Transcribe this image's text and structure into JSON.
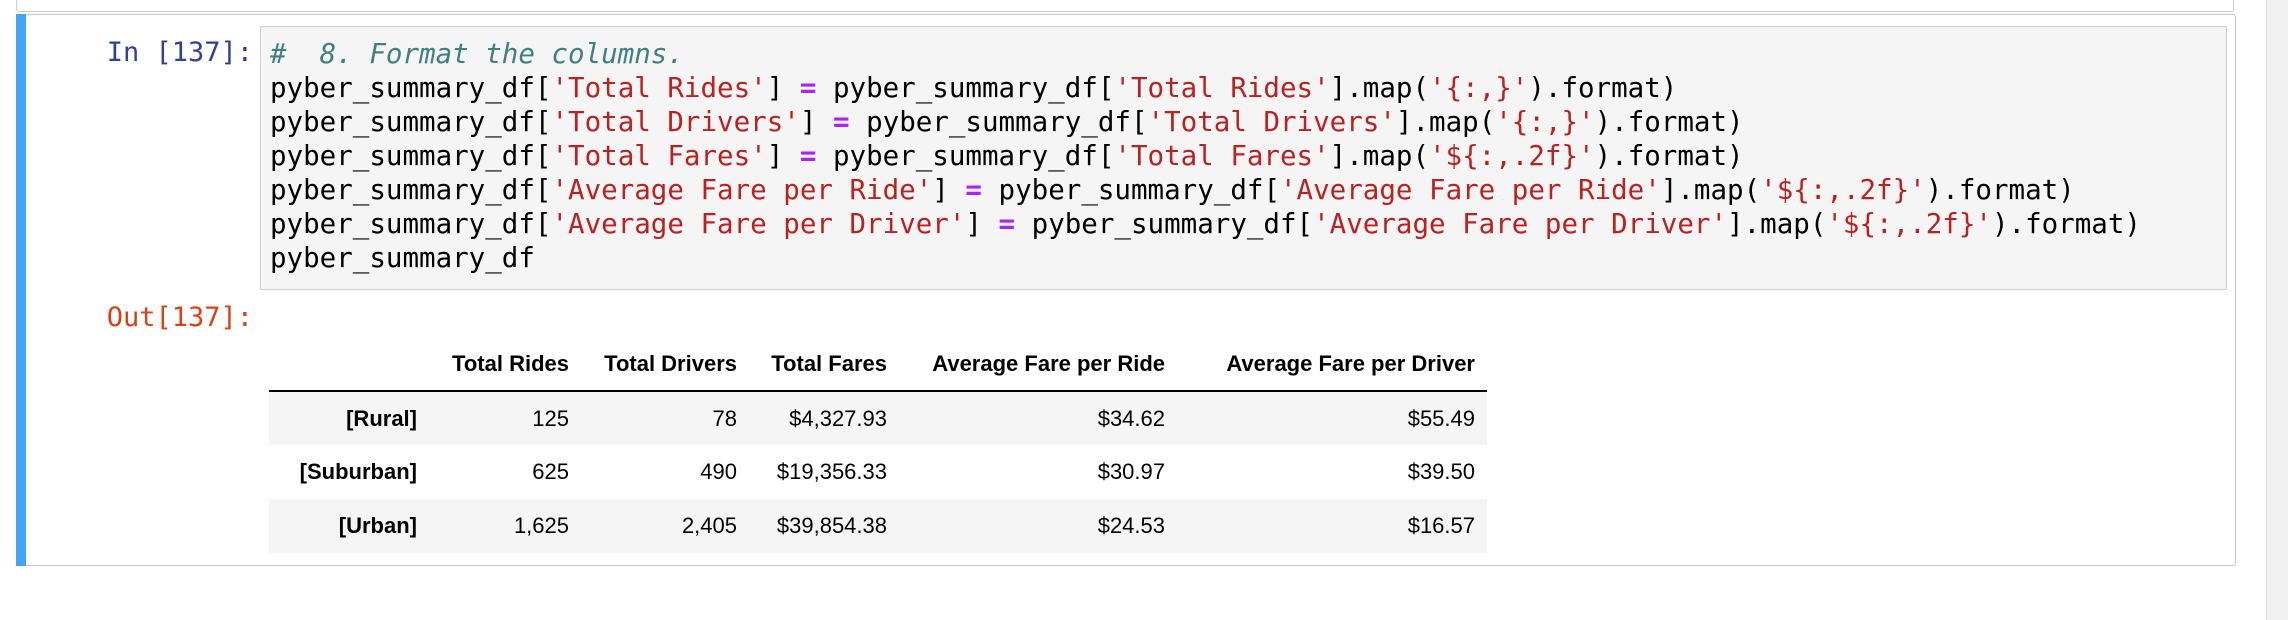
{
  "cell": {
    "in_prompt": "In [137]:",
    "out_prompt": "Out[137]:"
  },
  "code": {
    "comment": "#  8. Format the columns.",
    "lines": [
      {
        "target_col": "'Total Rides'",
        "source_col": "'Total Rides'",
        "fmt": "'{:,}'"
      },
      {
        "target_col": "'Total Drivers'",
        "source_col": "'Total Drivers'",
        "fmt": "'{:,}'"
      },
      {
        "target_col": "'Total Fares'",
        "source_col": "'Total Fares'",
        "fmt": "'${:,.2f}'"
      },
      {
        "target_col": "'Average Fare per Ride'",
        "source_col": "'Average Fare per Ride'",
        "fmt": "'${:,.2f}'"
      },
      {
        "target_col": "'Average Fare per Driver'",
        "source_col": "'Average Fare per Driver'",
        "fmt": "'${:,.2f}'"
      }
    ],
    "var": "pyber_summary_df",
    "last_line": "pyber_summary_df"
  },
  "table": {
    "columns": [
      "",
      "Total Rides",
      "Total Drivers",
      "Total Fares",
      "Average Fare per Ride",
      "Average Fare per Driver"
    ],
    "rows": [
      {
        "index": "[Rural]",
        "cells": [
          "125",
          "78",
          "$4,327.93",
          "$34.62",
          "$55.49"
        ]
      },
      {
        "index": "[Suburban]",
        "cells": [
          "625",
          "490",
          "$19,356.33",
          "$30.97",
          "$39.50"
        ]
      },
      {
        "index": "[Urban]",
        "cells": [
          "1,625",
          "2,405",
          "$39,854.38",
          "$24.53",
          "$16.57"
        ]
      }
    ]
  }
}
